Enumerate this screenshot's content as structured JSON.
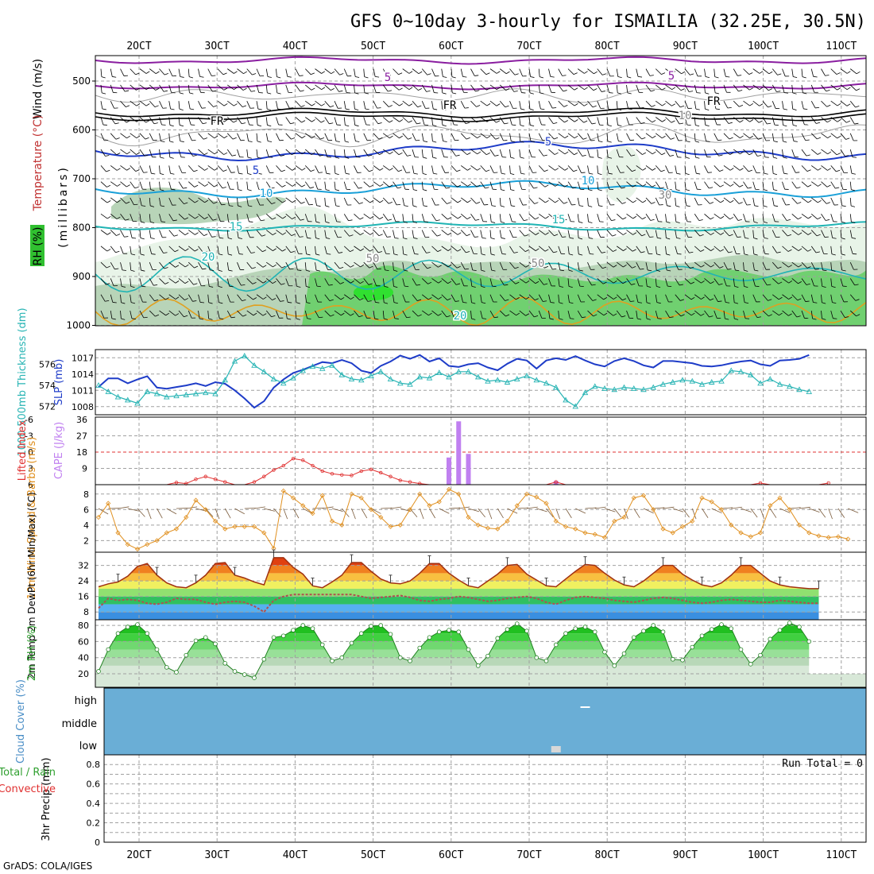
{
  "title": "GFS 0~10day 3-hourly for ISMAILIA (32.25E, 30.5N)",
  "footer": "GrADS: COLA/IGES",
  "date_labels": [
    "2OCT",
    "3OCT",
    "4OCT",
    "5OCT",
    "6OCT",
    "7OCT",
    "8OCT",
    "9OCT",
    "10OCT",
    "11OCT"
  ],
  "colors": {
    "frame": "#000000",
    "grid": "#a0a0a0",
    "slp": "#1e3cc8",
    "thickness": "#28b4b4",
    "lifted": "#e03030",
    "cape": "#c080f0",
    "wind10m": "#e09020",
    "temp_line": "#a03010",
    "dew_line": "#b05050",
    "rh_green": "#30c030",
    "cloud": "#6aaed6",
    "rh_shade_light": "#e8f4e8",
    "rh_shade_mid": "#b8d4b8",
    "rh_shade_green": "#70d070"
  },
  "panels": {
    "upper_air": {
      "ylabel_parts": [
        "Wind (m/s)",
        "Temperature (°C)",
        "RH (%)"
      ],
      "ylabel_units": "(millibars)",
      "yticks": [
        500,
        600,
        700,
        800,
        900,
        1000
      ],
      "contour_labels": [
        "5",
        "5",
        "FR",
        "FR",
        "FR",
        "5",
        "5",
        "10",
        "10",
        "15",
        "15",
        "20",
        "20",
        "50",
        "50",
        "30",
        "10"
      ]
    },
    "slp_thickness": {
      "ylabel_left": "1000-500mb Thickness (dm)",
      "ylabel_right": "SLP (mb)",
      "left_ticks": [
        572,
        574,
        576
      ],
      "right_ticks": [
        1008,
        1011,
        1014,
        1017
      ]
    },
    "lifted_cape": {
      "ylabel_left": "Lifted Index",
      "ylabel_right": "CAPE (J/kg)",
      "left_ticks": [
        "-6",
        "-3",
        "0",
        "3",
        "6"
      ],
      "right_ticks": [
        "9",
        "18",
        "27",
        "36"
      ]
    },
    "wind10m": {
      "ylabel": "10m Wind Speed & Barbs (m/s)",
      "yticks": [
        2,
        4,
        6,
        8
      ]
    },
    "temp2m": {
      "ylabel": "2m Temp 2m DewPt (6hr Min/Max) (°C)",
      "yticks": [
        8,
        16,
        24,
        32
      ]
    },
    "rh2m": {
      "ylabel": "2m RH (%)",
      "yticks": [
        20,
        40,
        60,
        80
      ]
    },
    "cloud": {
      "ylabel": "Cloud Cover (%)",
      "levels": [
        "high",
        "middle",
        "low"
      ]
    },
    "precip": {
      "ylabel_left_parts": [
        "Total / Rain",
        "Convective"
      ],
      "ylabel": "3hr Precip (mm)",
      "yticks": [
        "0",
        "0.2",
        "0.4",
        "0.6",
        "0.8"
      ],
      "run_total": "Run Total = 0"
    }
  },
  "chart_data": [
    {
      "type": "line",
      "name_panel": "slp_thickness",
      "x_unit": "3-hour steps from 00Z 1 Oct",
      "series": [
        {
          "name": "SLP (mb)",
          "values": [
            1011.6,
            1013.2,
            1013.2,
            1012.3,
            1013.0,
            1013.6,
            1011.5,
            1011.3,
            1011.6,
            1011.9,
            1012.3,
            1011.8,
            1012.5,
            1012.2,
            1011.0,
            1009.5,
            1007.8,
            1009.0,
            1011.5,
            1013.0,
            1014.2,
            1014.8,
            1015.5,
            1016.2,
            1016.0,
            1016.6,
            1016.0,
            1014.6,
            1014.2,
            1015.5,
            1016.3,
            1017.4,
            1016.8,
            1017.5,
            1016.3,
            1016.9,
            1015.5,
            1015.3,
            1015.8,
            1016.0,
            1015.2,
            1014.7,
            1015.9,
            1016.8,
            1016.5,
            1015.0,
            1016.5,
            1016.9,
            1016.6,
            1017.3,
            1016.5,
            1015.8,
            1015.4,
            1016.4,
            1016.9,
            1016.4,
            1015.6,
            1015.2,
            1016.4,
            1016.4,
            1016.2,
            1016.0,
            1015.5,
            1015.4,
            1015.6,
            1016.0,
            1016.3,
            1016.5,
            1015.8,
            1015.5,
            1016.5,
            1016.6,
            1016.8,
            1017.5
          ]
        },
        {
          "name": "1000-500mb Thickness (dm)",
          "values": [
            574.0,
            573.4,
            572.9,
            572.6,
            572.3,
            573.4,
            573.2,
            572.9,
            573.0,
            573.1,
            573.2,
            573.3,
            573.2,
            574.5,
            576.3,
            576.8,
            575.9,
            575.3,
            574.6,
            574.2,
            574.7,
            575.4,
            575.8,
            575.6,
            575.9,
            575.0,
            574.6,
            574.5,
            574.9,
            575.3,
            574.6,
            574.2,
            574.1,
            574.8,
            574.7,
            575.2,
            574.8,
            575.3,
            575.3,
            574.8,
            574.4,
            574.5,
            574.3,
            574.6,
            574.9,
            574.5,
            574.2,
            573.8,
            572.6,
            572.0,
            573.3,
            573.9,
            573.7,
            573.6,
            573.8,
            573.7,
            573.6,
            573.8,
            574.1,
            574.3,
            574.5,
            574.4,
            574.1,
            574.3,
            574.4,
            575.4,
            575.3,
            575.0,
            574.2,
            574.6,
            574.1,
            573.9,
            573.6,
            573.4
          ]
        }
      ],
      "left_range": [
        571.2,
        577.4
      ],
      "right_range": [
        1006.5,
        1018.5
      ]
    },
    {
      "type": "bar",
      "name_panel": "lifted_cape",
      "series": [
        {
          "name": "Lifted Index",
          "values": [
            6,
            6,
            6,
            6,
            6,
            6,
            6,
            6,
            5.6,
            5.8,
            5.0,
            4.5,
            5,
            5.5,
            6,
            6,
            5.5,
            4.5,
            3.3,
            2.5,
            1.2,
            1.5,
            2.5,
            3.5,
            4,
            4.2,
            4.3,
            3.5,
            3.2,
            3.8,
            4.5,
            5.2,
            5.5,
            5.8,
            6,
            6,
            6,
            6,
            6,
            6,
            6,
            6,
            6,
            6,
            6,
            6,
            6,
            5.5,
            6,
            6,
            6,
            6,
            6,
            6,
            6,
            6,
            6,
            6,
            6,
            6,
            6,
            6,
            6,
            6,
            6,
            6,
            6,
            6,
            5.7,
            6,
            6,
            6,
            6,
            6,
            6,
            5.7
          ]
        },
        {
          "name": "CAPE (J/kg)",
          "bars": [
            {
              "step": 36,
              "value": 15
            },
            {
              "step": 37,
              "value": 35
            },
            {
              "step": 38,
              "value": 17
            },
            {
              "step": 47,
              "value": 2
            }
          ]
        }
      ],
      "left_range": [
        6,
        -6
      ],
      "right_range": [
        0,
        36
      ]
    },
    {
      "type": "line",
      "name_panel": "wind10m",
      "series": [
        {
          "name": "10m Wind Speed (m/s)",
          "values": [
            5.0,
            6.8,
            3.0,
            1.5,
            0.9,
            1.5,
            2.0,
            3.0,
            3.5,
            5.0,
            7.2,
            6.0,
            4.5,
            3.5,
            3.8,
            3.8,
            3.8,
            3.0,
            1.0,
            8.4,
            7.5,
            6.5,
            5.5,
            7.8,
            4.5,
            4.0,
            8.0,
            7.5,
            6.0,
            5.0,
            3.8,
            4.0,
            6.0,
            8.0,
            6.5,
            7.0,
            8.6,
            8.0,
            5.0,
            4.0,
            3.6,
            3.5,
            4.5,
            6.5,
            8.0,
            7.6,
            6.8,
            4.5,
            3.8,
            3.5,
            3.0,
            2.8,
            2.4,
            4.5,
            5.0,
            7.5,
            7.8,
            6.0,
            3.5,
            3.0,
            3.8,
            4.5,
            7.5,
            7.0,
            6.0,
            4.0,
            3.0,
            2.5,
            3.0,
            6.5,
            7.5,
            6.0,
            4.0,
            3.0,
            2.6,
            2.4,
            2.5,
            2.2
          ]
        }
      ],
      "y_range": [
        0.5,
        9
      ]
    },
    {
      "type": "area",
      "name_panel": "temp2m",
      "series": [
        {
          "name": "2m Temp (°C)",
          "values": [
            21,
            22.5,
            23.5,
            26.5,
            31.5,
            33,
            27,
            23,
            21,
            20.5,
            23,
            27,
            33,
            33.5,
            27,
            25.5,
            23.5,
            22,
            36,
            36,
            31,
            27.5,
            21.5,
            20.5,
            23.5,
            27,
            33.5,
            33.5,
            29,
            25,
            23,
            22.5,
            24,
            28,
            33,
            33,
            28,
            24.5,
            21.5,
            20.5,
            24,
            27.5,
            32,
            32.5,
            27.5,
            24.5,
            21.5,
            21,
            25,
            29,
            32.5,
            32,
            28,
            24.5,
            22,
            21,
            24,
            28,
            32,
            32,
            27.5,
            24.5,
            22,
            21,
            23,
            27,
            32,
            32,
            28,
            24,
            22,
            21,
            20.5,
            20,
            20
          ]
        },
        {
          "name": "2m DewPt (°C)",
          "values": [
            10,
            15,
            14,
            14.5,
            14,
            12.5,
            12,
            13,
            15,
            14.5,
            14.5,
            13,
            12,
            13,
            13.5,
            13,
            11,
            8,
            14,
            16,
            17,
            17,
            17,
            17,
            17,
            17,
            17,
            16,
            15,
            15.5,
            16,
            16.5,
            15.5,
            14,
            13.5,
            14.5,
            15,
            16,
            15.5,
            14.5,
            13.5,
            14,
            15,
            15.5,
            16,
            15,
            13,
            12,
            14,
            15.5,
            16,
            15.5,
            15,
            14,
            13.5,
            13,
            14,
            15,
            15.5,
            15,
            14,
            13,
            12.5,
            13,
            14,
            14.5,
            14,
            13.5,
            13,
            13,
            14,
            13.5,
            13,
            12.5,
            12.5
          ]
        }
      ],
      "y_range": [
        4,
        38
      ]
    },
    {
      "type": "area",
      "name_panel": "rh2m",
      "series": [
        {
          "name": "2m RH (%)",
          "values": [
            23,
            50,
            70,
            78,
            81,
            70,
            50,
            28,
            22,
            43,
            61,
            65,
            57,
            33,
            23,
            19,
            15,
            38,
            65,
            67,
            74,
            80,
            76,
            56,
            36,
            40,
            58,
            70,
            79,
            80,
            69,
            40,
            36,
            52,
            65,
            72,
            74,
            72,
            50,
            30,
            42,
            64,
            75,
            82,
            73,
            40,
            36,
            56,
            70,
            76,
            78,
            72,
            47,
            30,
            45,
            65,
            73,
            80,
            72,
            38,
            37,
            53,
            67,
            75,
            81,
            76,
            50,
            32,
            43,
            63,
            74,
            83,
            78,
            60
          ]
        }
      ],
      "y_range": [
        12,
        92
      ]
    },
    {
      "type": "bar",
      "name_panel": "cloud",
      "series": [
        {
          "name": "high",
          "bars": [
            {
              "step": 50,
              "value": 5
            }
          ]
        },
        {
          "name": "low",
          "bars": [
            {
              "step": 47,
              "value": 10
            }
          ]
        }
      ],
      "y_range": [
        0,
        100
      ]
    },
    {
      "type": "bar",
      "name_panel": "precip",
      "series": [
        {
          "name": "3hr Precip (mm)",
          "values": []
        }
      ],
      "y_range": [
        0,
        0.9
      ]
    }
  ]
}
